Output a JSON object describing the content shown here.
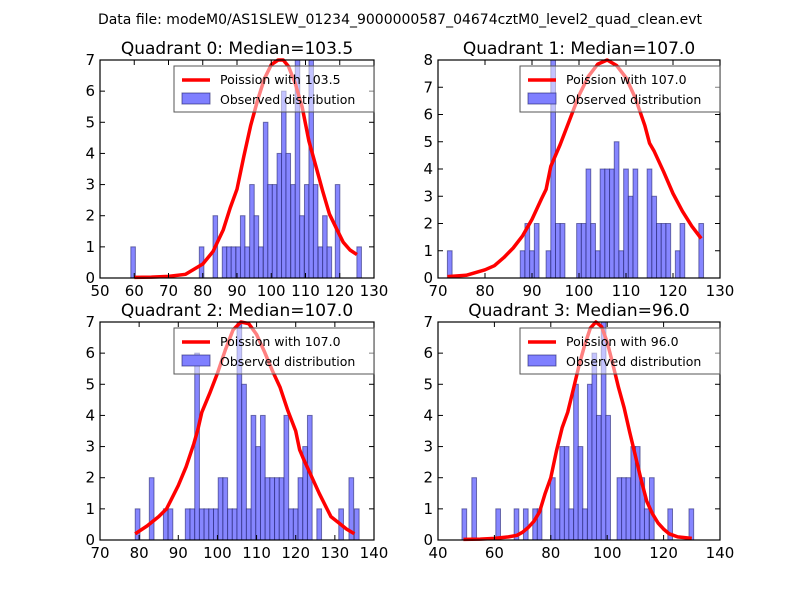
{
  "chart_data": {
    "type": "bar",
    "title": "Data file: modeM0/AS1SLEW_01234_9000000587_04674cztM0_level2_quad_clean.evt",
    "legend_placement": "top-right",
    "colors": {
      "bar_fill": "#7f7fff",
      "bar_edge": "#1a1a66",
      "curve": "#ff0000"
    },
    "panels": [
      {
        "title": "Quadrant 0: Median=103.5",
        "median": 103.5,
        "xlim": [
          50,
          130
        ],
        "ylim": [
          0,
          7
        ],
        "xticks": [
          50,
          60,
          70,
          80,
          90,
          100,
          110,
          120,
          130
        ],
        "yticks": [
          0,
          1,
          2,
          3,
          4,
          5,
          6,
          7
        ],
        "bin_width": 1.33,
        "legend": {
          "curve_label": "Poission with 103.5",
          "bar_label": "Observed distribution"
        },
        "bars": [
          [
            59.0,
            1
          ],
          [
            79.0,
            1
          ],
          [
            83.0,
            2
          ],
          [
            85.7,
            1
          ],
          [
            87.0,
            1
          ],
          [
            88.3,
            1
          ],
          [
            89.7,
            1
          ],
          [
            91.0,
            2
          ],
          [
            92.3,
            1
          ],
          [
            93.7,
            3
          ],
          [
            95.0,
            2
          ],
          [
            96.3,
            1
          ],
          [
            97.7,
            5
          ],
          [
            99.0,
            3
          ],
          [
            100.3,
            3
          ],
          [
            101.7,
            4
          ],
          [
            103.0,
            6
          ],
          [
            104.3,
            4
          ],
          [
            105.7,
            3
          ],
          [
            107.0,
            7
          ],
          [
            108.3,
            2
          ],
          [
            109.7,
            3
          ],
          [
            111.0,
            7
          ],
          [
            112.3,
            3
          ],
          [
            113.7,
            1
          ],
          [
            115.0,
            2
          ],
          [
            116.3,
            1
          ],
          [
            118.7,
            3
          ],
          [
            125.0,
            1
          ]
        ],
        "curve": {
          "x": [
            60,
            65,
            70,
            75,
            80,
            83,
            86,
            88,
            90,
            92,
            94,
            96,
            98,
            100,
            102,
            103.5,
            105,
            107,
            109,
            111,
            113,
            115,
            117,
            119,
            121,
            123,
            125
          ],
          "y": [
            0.02,
            0.03,
            0.05,
            0.12,
            0.45,
            0.85,
            1.55,
            2.25,
            2.85,
            3.9,
            4.9,
            5.7,
            6.4,
            6.85,
            7.0,
            7.0,
            6.8,
            6.25,
            5.5,
            4.4,
            3.6,
            2.8,
            2.05,
            1.6,
            1.15,
            0.9,
            0.75
          ]
        }
      },
      {
        "title": "Quadrant 1: Median=107.0",
        "median": 107.0,
        "xlim": [
          70,
          130
        ],
        "ylim": [
          0,
          8
        ],
        "xticks": [
          70,
          80,
          90,
          100,
          110,
          120,
          130
        ],
        "yticks": [
          0,
          1,
          2,
          3,
          4,
          5,
          6,
          7,
          8
        ],
        "bin_width": 1.0,
        "legend": {
          "curve_label": "Poission with 107.0",
          "bar_label": "Observed distribution"
        },
        "bars": [
          [
            72.0,
            1
          ],
          [
            87.5,
            1
          ],
          [
            88.5,
            2
          ],
          [
            89.5,
            1
          ],
          [
            90.5,
            2
          ],
          [
            93.0,
            1
          ],
          [
            94.0,
            8
          ],
          [
            95.0,
            2
          ],
          [
            96.0,
            2
          ],
          [
            99.5,
            2
          ],
          [
            100.5,
            2
          ],
          [
            101.5,
            4
          ],
          [
            102.5,
            2
          ],
          [
            103.5,
            1
          ],
          [
            104.5,
            4
          ],
          [
            105.5,
            4
          ],
          [
            106.5,
            4
          ],
          [
            107.5,
            5
          ],
          [
            108.5,
            1
          ],
          [
            109.5,
            4
          ],
          [
            110.5,
            3
          ],
          [
            111.5,
            4
          ],
          [
            114.5,
            4
          ],
          [
            115.5,
            3
          ],
          [
            116.5,
            2
          ],
          [
            117.5,
            2
          ],
          [
            118.5,
            2
          ],
          [
            120.5,
            1
          ],
          [
            121.5,
            2
          ],
          [
            125.5,
            2
          ]
        ],
        "curve": {
          "x": [
            72,
            76,
            80,
            82,
            84,
            86,
            88,
            90,
            92,
            93,
            94,
            96,
            98,
            100,
            102,
            104,
            106,
            108,
            110,
            112,
            114,
            115,
            116,
            118,
            120,
            122,
            124,
            126
          ],
          "y": [
            0.05,
            0.1,
            0.3,
            0.45,
            0.75,
            1.1,
            1.55,
            2.15,
            2.9,
            3.25,
            4.1,
            4.9,
            5.8,
            6.7,
            7.4,
            7.85,
            8.0,
            7.8,
            7.35,
            6.6,
            5.6,
            4.95,
            4.65,
            3.9,
            3.1,
            2.45,
            1.9,
            1.45
          ]
        }
      },
      {
        "title": "Quadrant 2: Median=107.0",
        "median": 107.0,
        "xlim": [
          70,
          140
        ],
        "ylim": [
          0,
          7
        ],
        "xticks": [
          70,
          80,
          90,
          100,
          110,
          120,
          130,
          140
        ],
        "yticks": [
          0,
          1,
          2,
          3,
          4,
          5,
          6,
          7
        ],
        "bin_width": 1.2,
        "legend": {
          "curve_label": "Poission with 107.0",
          "bar_label": "Observed distribution"
        },
        "bars": [
          [
            79.0,
            1
          ],
          [
            82.6,
            2
          ],
          [
            86.2,
            1
          ],
          [
            87.4,
            1
          ],
          [
            91.8,
            1
          ],
          [
            93.0,
            1
          ],
          [
            94.2,
            6
          ],
          [
            95.4,
            1
          ],
          [
            96.6,
            1
          ],
          [
            97.8,
            1
          ],
          [
            99.0,
            1
          ],
          [
            100.2,
            2
          ],
          [
            101.4,
            2
          ],
          [
            102.6,
            1
          ],
          [
            103.8,
            1
          ],
          [
            105.0,
            7
          ],
          [
            106.2,
            5
          ],
          [
            107.4,
            1
          ],
          [
            108.6,
            4
          ],
          [
            109.8,
            3
          ],
          [
            111.0,
            4
          ],
          [
            112.2,
            2
          ],
          [
            113.4,
            2
          ],
          [
            114.6,
            2
          ],
          [
            115.8,
            2
          ],
          [
            117.0,
            4
          ],
          [
            118.2,
            1
          ],
          [
            119.4,
            1
          ],
          [
            120.6,
            2
          ],
          [
            121.8,
            3
          ],
          [
            123.0,
            4
          ],
          [
            125.4,
            1
          ],
          [
            131.0,
            1
          ],
          [
            133.6,
            2
          ],
          [
            135.0,
            1
          ]
        ],
        "curve": {
          "x": [
            79,
            82,
            85,
            87,
            88,
            90,
            92,
            94,
            95,
            96,
            98,
            100,
            102,
            104,
            106,
            108,
            110,
            112,
            114,
            116,
            118,
            120,
            121,
            122,
            124,
            126,
            128,
            129,
            131,
            133,
            135
          ],
          "y": [
            0.2,
            0.45,
            0.75,
            1.0,
            1.25,
            1.75,
            2.35,
            3.1,
            3.55,
            4.1,
            4.7,
            5.35,
            6.1,
            6.75,
            7.0,
            6.95,
            6.6,
            6.05,
            5.45,
            4.9,
            4.15,
            3.5,
            2.9,
            2.6,
            2.05,
            1.5,
            1.0,
            0.75,
            0.55,
            0.35,
            0.2
          ]
        }
      },
      {
        "title": "Quadrant 3: Median=96.0",
        "median": 96.0,
        "xlim": [
          40,
          140
        ],
        "ylim": [
          0,
          7
        ],
        "xticks": [
          40,
          60,
          80,
          100,
          120,
          140
        ],
        "yticks": [
          0,
          1,
          2,
          3,
          4,
          5,
          6,
          7
        ],
        "bin_width": 1.66,
        "legend": {
          "curve_label": "Poission with 96.0",
          "bar_label": "Observed distribution"
        },
        "bars": [
          [
            48.5,
            1
          ],
          [
            52.0,
            2
          ],
          [
            60.5,
            1
          ],
          [
            67.0,
            1
          ],
          [
            70.3,
            1
          ],
          [
            73.6,
            1
          ],
          [
            75.2,
            1
          ],
          [
            79.9,
            2
          ],
          [
            81.5,
            1
          ],
          [
            83.2,
            3
          ],
          [
            84.8,
            3
          ],
          [
            86.4,
            1
          ],
          [
            88.1,
            5
          ],
          [
            89.7,
            3
          ],
          [
            91.3,
            1
          ],
          [
            93.0,
            5
          ],
          [
            94.6,
            6
          ],
          [
            96.2,
            4
          ],
          [
            97.9,
            7
          ],
          [
            99.5,
            4
          ],
          [
            103.5,
            2
          ],
          [
            105.1,
            2
          ],
          [
            106.7,
            2
          ],
          [
            108.4,
            3
          ],
          [
            110.0,
            3
          ],
          [
            111.6,
            2
          ],
          [
            113.2,
            1
          ],
          [
            115.0,
            2
          ],
          [
            121.5,
            1
          ],
          [
            129.0,
            1
          ]
        ],
        "curve": {
          "x": [
            49,
            55,
            60,
            65,
            68,
            70,
            72,
            74,
            76,
            78,
            80,
            82,
            84,
            86,
            88,
            90,
            92,
            94,
            96,
            98,
            100,
            102,
            104,
            106,
            108,
            110,
            112,
            114,
            116,
            118,
            120,
            122,
            125,
            130
          ],
          "y": [
            0.02,
            0.03,
            0.05,
            0.1,
            0.15,
            0.25,
            0.4,
            0.6,
            0.9,
            1.5,
            2.0,
            2.85,
            3.6,
            4.1,
            4.85,
            5.6,
            6.25,
            6.8,
            7.0,
            6.85,
            6.35,
            5.65,
            4.9,
            4.25,
            3.45,
            2.7,
            1.95,
            1.25,
            0.85,
            0.55,
            0.35,
            0.2,
            0.1,
            0.05
          ]
        }
      }
    ]
  }
}
